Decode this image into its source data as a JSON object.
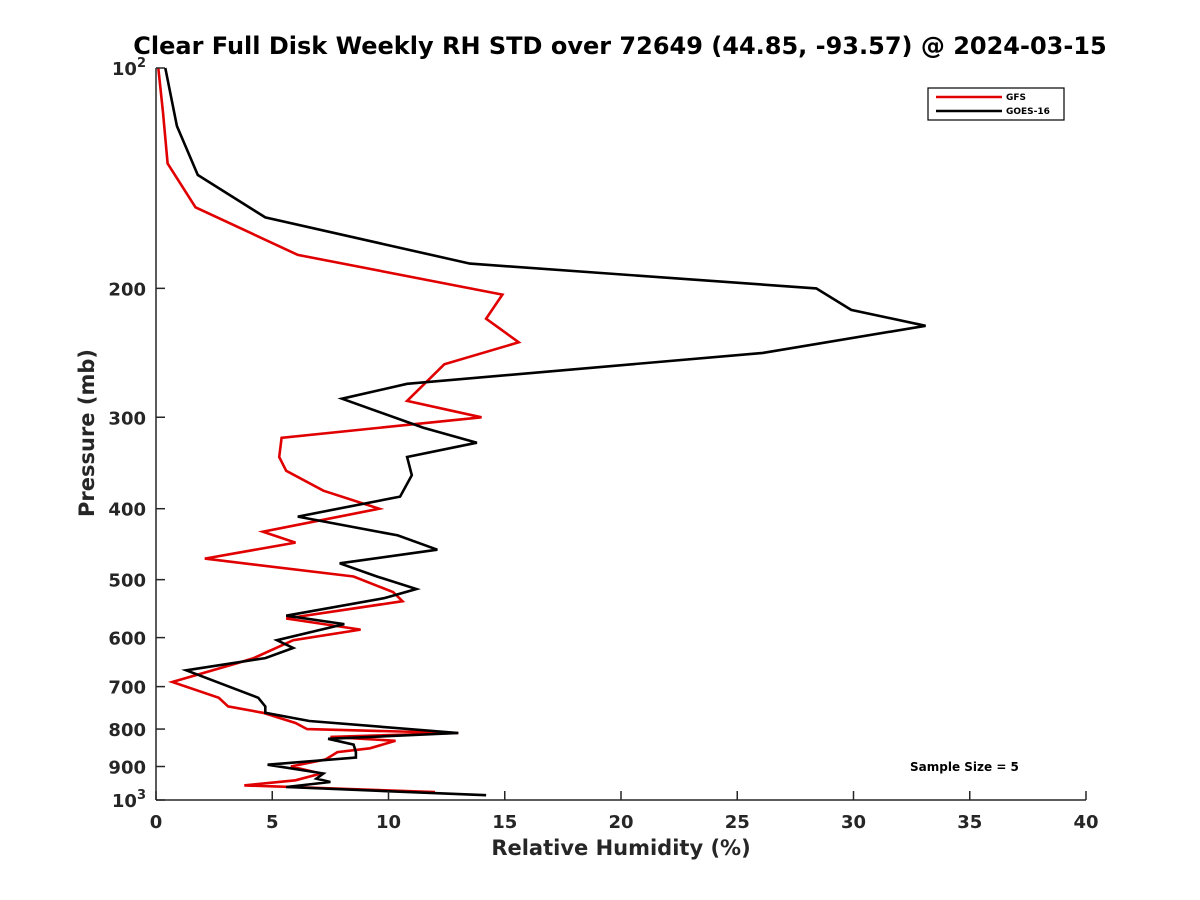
{
  "chart_data": {
    "type": "line",
    "title": "Clear Full Disk Weekly RH STD over 72649 (44.85, -93.57) @ 2024-03-15",
    "xlabel": "Relative Humidity (%)",
    "ylabel": "Pressure (mb)",
    "xlim": [
      0,
      40
    ],
    "ylim": [
      100,
      1000
    ],
    "yscale": "log",
    "y_reversed": true,
    "grid": false,
    "legend_position": "top-right",
    "x_ticks": [
      0,
      5,
      10,
      15,
      20,
      25,
      30,
      35,
      40
    ],
    "x_tick_labels": [
      "0",
      "5",
      "10",
      "15",
      "20",
      "25",
      "30",
      "35",
      "40"
    ],
    "y_ticks": [
      100,
      200,
      300,
      400,
      500,
      600,
      700,
      800,
      900,
      1000
    ],
    "y_tick_labels": [
      {
        "base": "10",
        "exp": "2"
      },
      {
        "base": "200",
        "exp": ""
      },
      {
        "base": "300",
        "exp": ""
      },
      {
        "base": "400",
        "exp": ""
      },
      {
        "base": "500",
        "exp": ""
      },
      {
        "base": "600",
        "exp": ""
      },
      {
        "base": "700",
        "exp": ""
      },
      {
        "base": "800",
        "exp": ""
      },
      {
        "base": "900",
        "exp": ""
      },
      {
        "base": "10",
        "exp": "3"
      }
    ],
    "series": [
      {
        "name": "GFS",
        "color": "#e00000",
        "points": [
          [
            0.1,
            100
          ],
          [
            0.3,
            115
          ],
          [
            0.5,
            135
          ],
          [
            1.7,
            155
          ],
          [
            6.1,
            180
          ],
          [
            14.9,
            204
          ],
          [
            14.2,
            220
          ],
          [
            15.6,
            237
          ],
          [
            12.4,
            254
          ],
          [
            10.8,
            285
          ],
          [
            14.0,
            300
          ],
          [
            5.4,
            320
          ],
          [
            5.3,
            340
          ],
          [
            5.6,
            355
          ],
          [
            7.2,
            378
          ],
          [
            9.6,
            400
          ],
          [
            4.6,
            430
          ],
          [
            6.0,
            445
          ],
          [
            2.1,
            468
          ],
          [
            8.5,
            495
          ],
          [
            10.2,
            520
          ],
          [
            10.6,
            535
          ],
          [
            5.6,
            565
          ],
          [
            8.8,
            585
          ],
          [
            5.9,
            605
          ],
          [
            4.2,
            640
          ],
          [
            3.5,
            650
          ],
          [
            0.7,
            690
          ],
          [
            2.7,
            725
          ],
          [
            3.1,
            745
          ],
          [
            4.6,
            760
          ],
          [
            6.0,
            785
          ],
          [
            6.5,
            800
          ],
          [
            13.0,
            810
          ],
          [
            7.5,
            820
          ],
          [
            10.3,
            830
          ],
          [
            9.2,
            850
          ],
          [
            7.8,
            860
          ],
          [
            7.3,
            880
          ],
          [
            5.8,
            900
          ],
          [
            7.1,
            920
          ],
          [
            6.0,
            940
          ],
          [
            3.8,
            955
          ],
          [
            12.0,
            975
          ]
        ]
      },
      {
        "name": "GOES-16",
        "color": "#000000",
        "points": [
          [
            0.4,
            100
          ],
          [
            0.9,
            120
          ],
          [
            1.8,
            140
          ],
          [
            4.7,
            160
          ],
          [
            13.5,
            185
          ],
          [
            28.4,
            200
          ],
          [
            29.9,
            214
          ],
          [
            33.1,
            225
          ],
          [
            26.1,
            245
          ],
          [
            10.8,
            270
          ],
          [
            8.0,
            283
          ],
          [
            11.5,
            310
          ],
          [
            13.8,
            325
          ],
          [
            10.8,
            340
          ],
          [
            11.0,
            360
          ],
          [
            10.5,
            385
          ],
          [
            6.1,
            410
          ],
          [
            10.4,
            435
          ],
          [
            12.1,
            455
          ],
          [
            7.9,
            475
          ],
          [
            9.5,
            495
          ],
          [
            11.2,
            515
          ],
          [
            9.8,
            530
          ],
          [
            5.6,
            560
          ],
          [
            8.1,
            575
          ],
          [
            5.2,
            605
          ],
          [
            5.9,
            620
          ],
          [
            4.7,
            640
          ],
          [
            1.3,
            665
          ],
          [
            4.4,
            725
          ],
          [
            4.7,
            745
          ],
          [
            4.7,
            760
          ],
          [
            6.6,
            780
          ],
          [
            13.0,
            810
          ],
          [
            7.4,
            825
          ],
          [
            8.5,
            840
          ],
          [
            8.6,
            860
          ],
          [
            8.6,
            875
          ],
          [
            4.8,
            895
          ],
          [
            7.2,
            920
          ],
          [
            6.9,
            935
          ],
          [
            7.5,
            945
          ],
          [
            5.6,
            960
          ],
          [
            14.2,
            985
          ]
        ]
      }
    ],
    "annotation": "Sample Size = 5"
  }
}
